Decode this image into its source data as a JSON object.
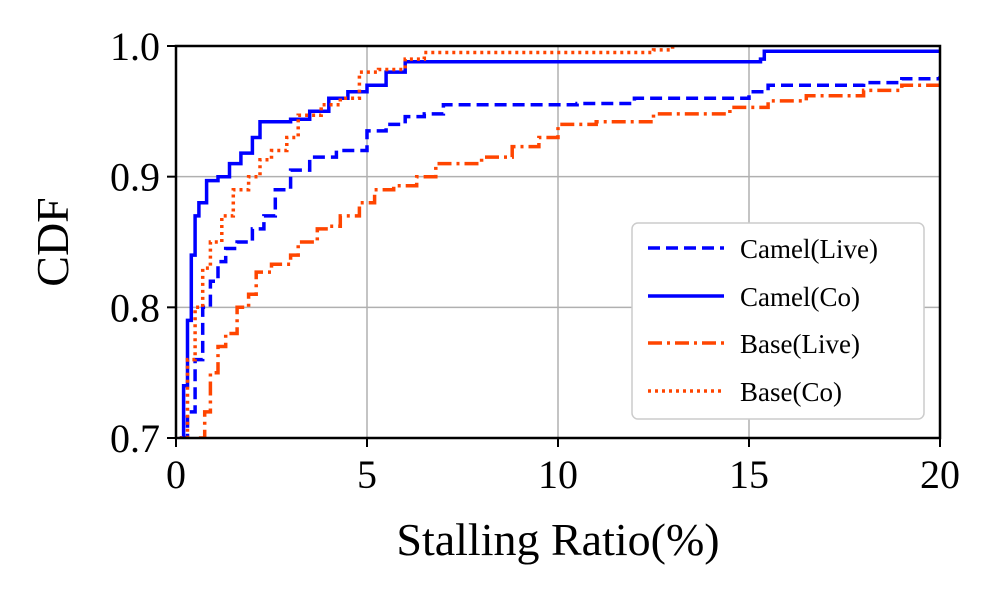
{
  "chart_data": {
    "type": "line",
    "title": "",
    "xlabel": "Stalling Ratio(%)",
    "ylabel": "CDF",
    "xlim": [
      0,
      20
    ],
    "ylim": [
      0.7,
      1.0
    ],
    "xticks": [
      0,
      5,
      10,
      15,
      20
    ],
    "xtick_labels": [
      "0",
      "5",
      "10",
      "15",
      "20"
    ],
    "yticks": [
      0.7,
      0.8,
      0.9,
      1.0
    ],
    "ytick_labels": [
      "0.7",
      "0.8",
      "0.9",
      "1.0"
    ],
    "grid": true,
    "legend_position": "center-right",
    "series": [
      {
        "name": "Camel(Live)",
        "color": "#0000ff",
        "dash": "dashed",
        "points": [
          [
            0.1,
            0.7
          ],
          [
            0.3,
            0.72
          ],
          [
            0.5,
            0.76
          ],
          [
            0.7,
            0.8
          ],
          [
            0.9,
            0.82
          ],
          [
            1.1,
            0.835
          ],
          [
            1.3,
            0.845
          ],
          [
            1.6,
            0.85
          ],
          [
            2.0,
            0.86
          ],
          [
            2.3,
            0.87
          ],
          [
            2.6,
            0.89
          ],
          [
            3.0,
            0.905
          ],
          [
            3.5,
            0.915
          ],
          [
            4.2,
            0.92
          ],
          [
            5.0,
            0.935
          ],
          [
            5.5,
            0.94
          ],
          [
            6.0,
            0.946
          ],
          [
            6.5,
            0.948
          ],
          [
            7.0,
            0.955
          ],
          [
            9.0,
            0.955
          ],
          [
            10.5,
            0.956
          ],
          [
            12.0,
            0.96
          ],
          [
            15.0,
            0.965
          ],
          [
            15.5,
            0.97
          ],
          [
            18.0,
            0.972
          ],
          [
            19.0,
            0.975
          ],
          [
            20.0,
            0.977
          ]
        ]
      },
      {
        "name": "Camel(Co)",
        "color": "#0000ff",
        "dash": "solid",
        "points": [
          [
            0.1,
            0.7
          ],
          [
            0.2,
            0.74
          ],
          [
            0.3,
            0.79
          ],
          [
            0.4,
            0.84
          ],
          [
            0.5,
            0.87
          ],
          [
            0.6,
            0.88
          ],
          [
            0.8,
            0.897
          ],
          [
            1.1,
            0.9
          ],
          [
            1.4,
            0.91
          ],
          [
            1.7,
            0.918
          ],
          [
            2.0,
            0.93
          ],
          [
            2.2,
            0.942
          ],
          [
            3.0,
            0.944
          ],
          [
            3.5,
            0.95
          ],
          [
            4.0,
            0.96
          ],
          [
            4.5,
            0.965
          ],
          [
            5.0,
            0.97
          ],
          [
            5.5,
            0.98
          ],
          [
            6.0,
            0.988
          ],
          [
            15.3,
            0.99
          ],
          [
            15.4,
            0.996
          ],
          [
            20.0,
            0.996
          ]
        ]
      },
      {
        "name": "Base(Live)",
        "color": "#ff4500",
        "dash": "dashdot",
        "points": [
          [
            0.6,
            0.7
          ],
          [
            0.75,
            0.72
          ],
          [
            0.9,
            0.75
          ],
          [
            1.1,
            0.77
          ],
          [
            1.3,
            0.78
          ],
          [
            1.6,
            0.8
          ],
          [
            1.9,
            0.81
          ],
          [
            2.1,
            0.827
          ],
          [
            2.5,
            0.833
          ],
          [
            3.0,
            0.84
          ],
          [
            3.2,
            0.85
          ],
          [
            3.7,
            0.86
          ],
          [
            4.0,
            0.862
          ],
          [
            4.3,
            0.87
          ],
          [
            4.8,
            0.88
          ],
          [
            5.2,
            0.89
          ],
          [
            5.7,
            0.893
          ],
          [
            6.3,
            0.9
          ],
          [
            6.8,
            0.91
          ],
          [
            7.5,
            0.91
          ],
          [
            8.0,
            0.915
          ],
          [
            8.8,
            0.923
          ],
          [
            9.5,
            0.93
          ],
          [
            10.0,
            0.94
          ],
          [
            11.0,
            0.942
          ],
          [
            12.5,
            0.948
          ],
          [
            14.5,
            0.953
          ],
          [
            15.5,
            0.958
          ],
          [
            16.5,
            0.962
          ],
          [
            18.0,
            0.966
          ],
          [
            19.0,
            0.97
          ],
          [
            20.0,
            0.974
          ]
        ]
      },
      {
        "name": "Base(Co)",
        "color": "#ff4500",
        "dash": "dotted",
        "points": [
          [
            0.1,
            0.7
          ],
          [
            0.3,
            0.76
          ],
          [
            0.5,
            0.8
          ],
          [
            0.7,
            0.83
          ],
          [
            0.9,
            0.85
          ],
          [
            1.2,
            0.87
          ],
          [
            1.5,
            0.89
          ],
          [
            1.9,
            0.9
          ],
          [
            2.2,
            0.913
          ],
          [
            2.5,
            0.92
          ],
          [
            2.9,
            0.93
          ],
          [
            3.2,
            0.947
          ],
          [
            3.8,
            0.955
          ],
          [
            4.3,
            0.96
          ],
          [
            4.8,
            0.98
          ],
          [
            5.3,
            0.982
          ],
          [
            6.0,
            0.99
          ],
          [
            6.5,
            0.995
          ],
          [
            12.5,
            0.997
          ],
          [
            13.0,
            1.0
          ]
        ]
      }
    ]
  }
}
